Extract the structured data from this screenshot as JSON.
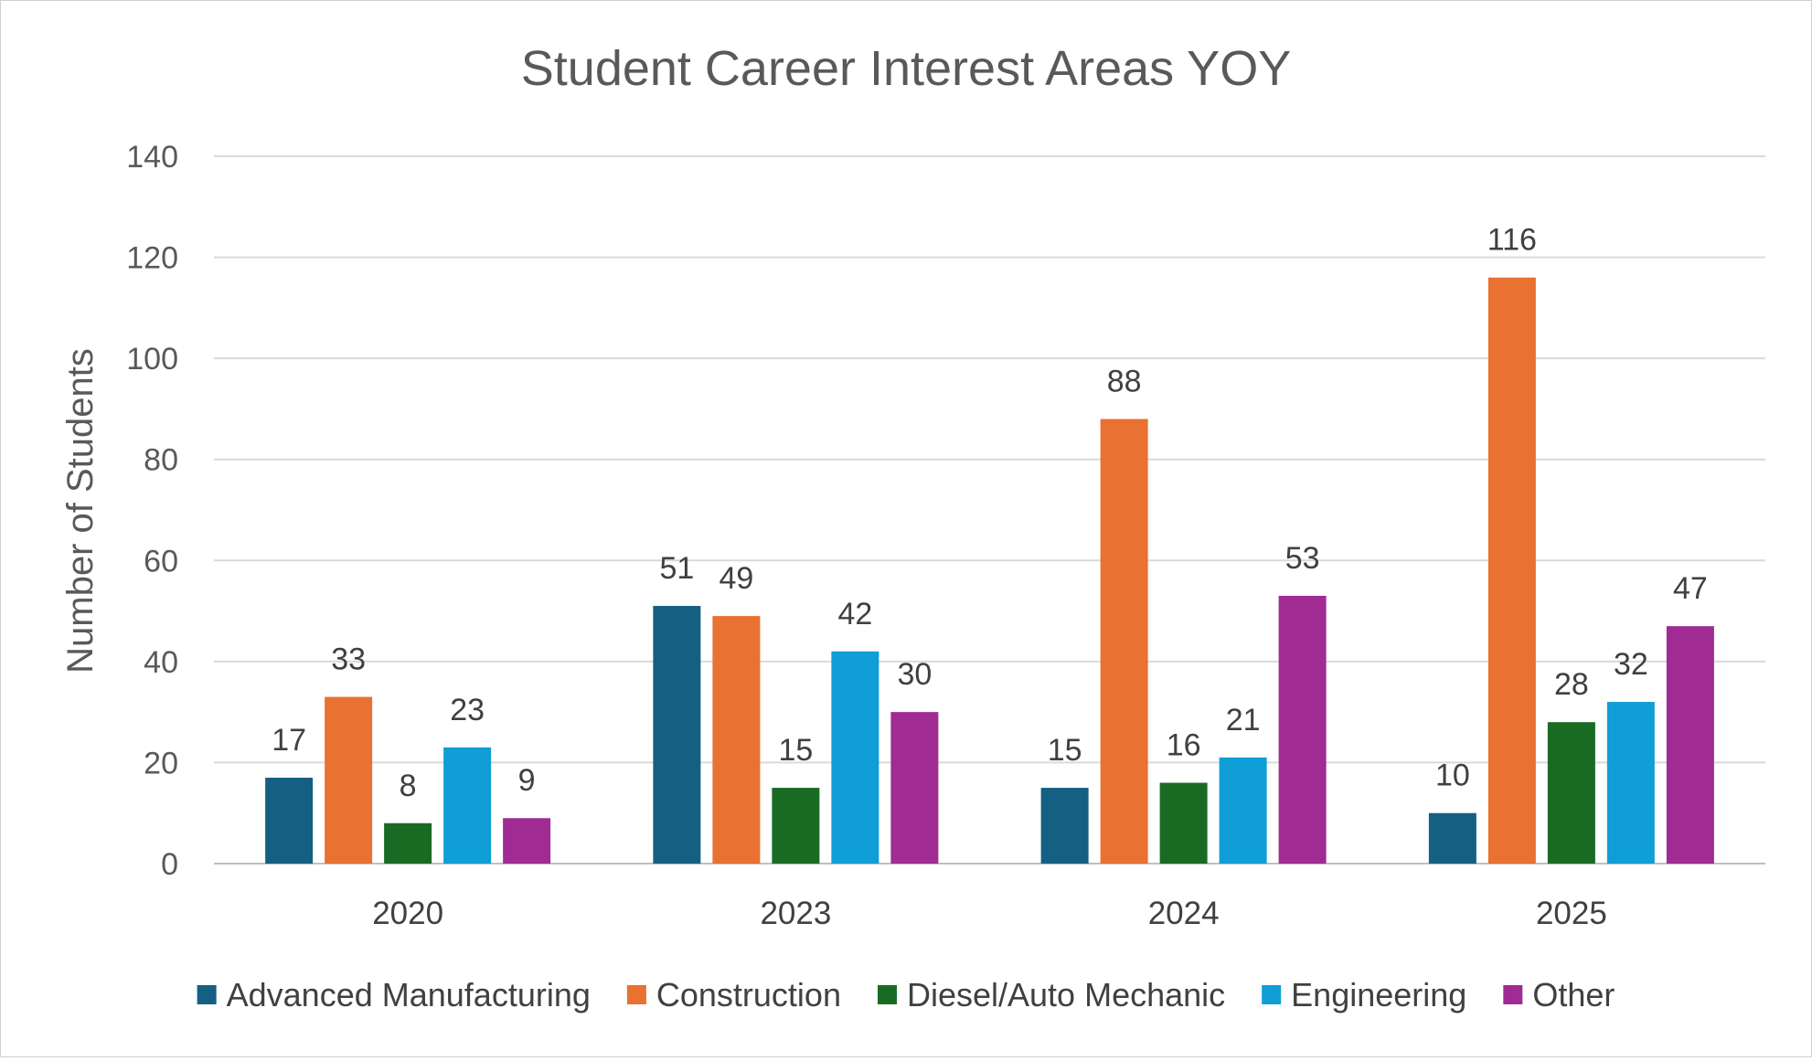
{
  "chart_data": {
    "type": "bar",
    "title": "Student Career Interest Areas YOY",
    "xlabel": "",
    "ylabel": "Number of Students",
    "ylim": [
      0,
      140
    ],
    "yticks": [
      0,
      20,
      40,
      60,
      80,
      100,
      120,
      140
    ],
    "grid": true,
    "legend_position": "bottom",
    "categories": [
      "2020",
      "2023",
      "2024",
      "2025"
    ],
    "series": [
      {
        "name": "Advanced Manufacturing",
        "color": "#156082",
        "values": [
          17,
          51,
          15,
          10
        ]
      },
      {
        "name": "Construction",
        "color": "#E97132",
        "values": [
          33,
          49,
          88,
          116
        ]
      },
      {
        "name": "Diesel/Auto Mechanic",
        "color": "#196B24",
        "values": [
          8,
          15,
          16,
          28
        ]
      },
      {
        "name": "Engineering",
        "color": "#0F9ED5",
        "values": [
          23,
          42,
          21,
          32
        ]
      },
      {
        "name": "Other",
        "color": "#A02B93",
        "values": [
          9,
          30,
          53,
          47
        ]
      }
    ]
  }
}
